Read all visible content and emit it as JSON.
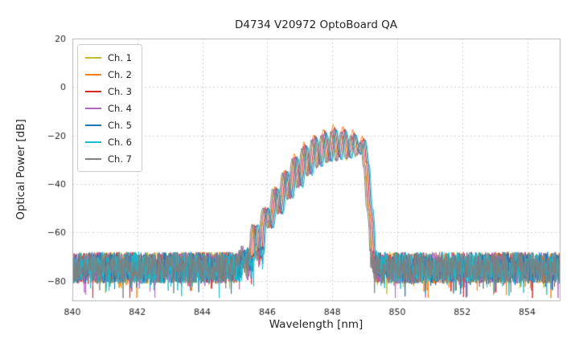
{
  "chart_data": {
    "type": "line",
    "title": "D4734 V20972 OptoBoard QA",
    "xlabel": "Wavelength [nm]",
    "ylabel": "Optical Power [dB]",
    "xlim": [
      840,
      855
    ],
    "ylim": [
      -88,
      20
    ],
    "xticks": [
      840,
      842,
      844,
      846,
      848,
      850,
      852,
      854
    ],
    "yticks": [
      20,
      0,
      -20,
      -40,
      -60,
      -80
    ],
    "grid": true,
    "legend_position": "upper left",
    "series": [
      {
        "name": "Ch. 1",
        "color": "#bcbd22",
        "x_offset_nm": -0.06,
        "peak_adjust_db": -1.0
      },
      {
        "name": "Ch. 2",
        "color": "#ff7f0e",
        "x_offset_nm": -0.02,
        "peak_adjust_db": 1.5
      },
      {
        "name": "Ch. 3",
        "color": "#d62728",
        "x_offset_nm": 0.02,
        "peak_adjust_db": 0.5
      },
      {
        "name": "Ch. 4",
        "color": "#b266c2",
        "x_offset_nm": -0.04,
        "peak_adjust_db": -0.5
      },
      {
        "name": "Ch. 5",
        "color": "#1f77b4",
        "x_offset_nm": 0.06,
        "peak_adjust_db": 0.0
      },
      {
        "name": "Ch. 6",
        "color": "#17becf",
        "x_offset_nm": 0.09,
        "peak_adjust_db": -0.5
      },
      {
        "name": "Ch. 7",
        "color": "#7f7f7f",
        "x_offset_nm": -0.09,
        "peak_adjust_db": -1.0
      }
    ],
    "spectrum_profile": [
      [
        844.7,
        -72
      ],
      [
        844.95,
        -70
      ],
      [
        845.15,
        -67
      ],
      [
        845.3,
        -63
      ],
      [
        845.45,
        -67
      ],
      [
        845.62,
        -57
      ],
      [
        845.78,
        -64
      ],
      [
        845.95,
        -50
      ],
      [
        846.1,
        -58
      ],
      [
        846.25,
        -42
      ],
      [
        846.4,
        -52
      ],
      [
        846.55,
        -35
      ],
      [
        846.7,
        -46
      ],
      [
        846.85,
        -29
      ],
      [
        847.0,
        -41
      ],
      [
        847.15,
        -24.5
      ],
      [
        847.3,
        -36
      ],
      [
        847.45,
        -21
      ],
      [
        847.6,
        -32.5
      ],
      [
        847.75,
        -19
      ],
      [
        847.9,
        -30.5
      ],
      [
        848.05,
        -17.5
      ],
      [
        848.2,
        -29.5
      ],
      [
        848.35,
        -18
      ],
      [
        848.5,
        -29
      ],
      [
        848.65,
        -19.5
      ],
      [
        848.8,
        -27.5
      ],
      [
        848.95,
        -22
      ],
      [
        849.05,
        -32
      ],
      [
        849.15,
        -50
      ],
      [
        849.28,
        -65
      ],
      [
        849.45,
        -72
      ],
      [
        849.6,
        -74
      ]
    ],
    "noise": {
      "floor_db": -68,
      "spread_db": 13,
      "spike_db": 8,
      "spike_prob": 0.07
    }
  }
}
